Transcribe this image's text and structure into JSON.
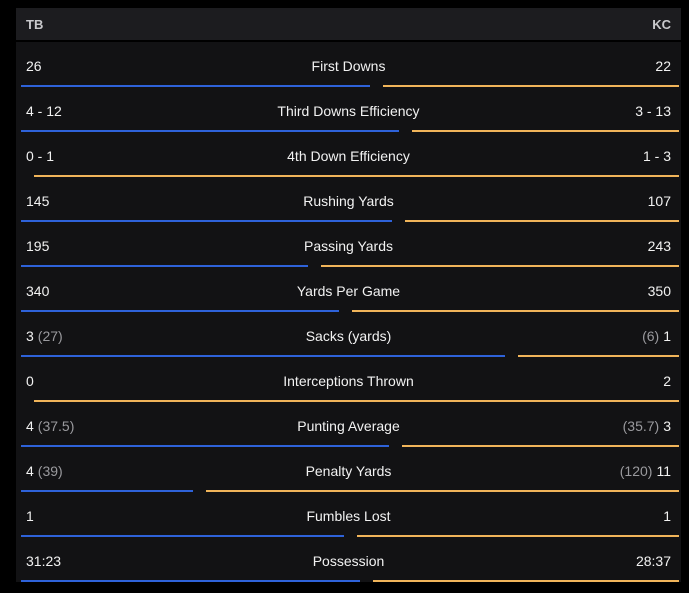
{
  "teams": {
    "home": "TB",
    "away": "KC"
  },
  "colors": {
    "tb": "#2e62d9",
    "kc": "#f0b45a"
  },
  "rows": [
    {
      "label": "First Downs",
      "tb": "26",
      "tb_sub": "",
      "kc": "22",
      "kc_sub": "",
      "tb_share": 0.541
    },
    {
      "label": "Third Downs Efficiency",
      "tb": "4 - 12",
      "tb_sub": "",
      "kc": "3 - 13",
      "kc_sub": "",
      "tb_share": 0.586
    },
    {
      "label": "4th Down Efficiency",
      "tb": "0 - 1",
      "tb_sub": "",
      "kc": "1 - 3",
      "kc_sub": "",
      "tb_share": 0.0
    },
    {
      "label": "Rushing Yards",
      "tb": "145",
      "tb_sub": "",
      "kc": "107",
      "kc_sub": "",
      "tb_share": 0.575
    },
    {
      "label": "Passing Yards",
      "tb": "195",
      "tb_sub": "",
      "kc": "243",
      "kc_sub": "",
      "tb_share": 0.445
    },
    {
      "label": "Yards Per Game",
      "tb": "340",
      "tb_sub": "",
      "kc": "350",
      "kc_sub": "",
      "tb_share": 0.493
    },
    {
      "label": "Sacks (yards)",
      "tb": "3",
      "tb_sub": "(27)",
      "kc": "1",
      "kc_sub": "(6)",
      "tb_share": 0.75
    },
    {
      "label": "Interceptions Thrown",
      "tb": "0",
      "tb_sub": "",
      "kc": "2",
      "kc_sub": "",
      "tb_share": 0.0
    },
    {
      "label": "Punting Average",
      "tb": "4",
      "tb_sub": "(37.5)",
      "kc": "3",
      "kc_sub": "(35.7)",
      "tb_share": 0.571
    },
    {
      "label": "Penalty Yards",
      "tb": "4",
      "tb_sub": "(39)",
      "kc": "11",
      "kc_sub": "(120)",
      "tb_share": 0.267
    },
    {
      "label": "Fumbles Lost",
      "tb": "1",
      "tb_sub": "",
      "kc": "1",
      "kc_sub": "",
      "tb_share": 0.5
    },
    {
      "label": "Possession",
      "tb": "31:23",
      "tb_sub": "",
      "kc": "28:37",
      "kc_sub": "",
      "tb_share": 0.525
    }
  ]
}
